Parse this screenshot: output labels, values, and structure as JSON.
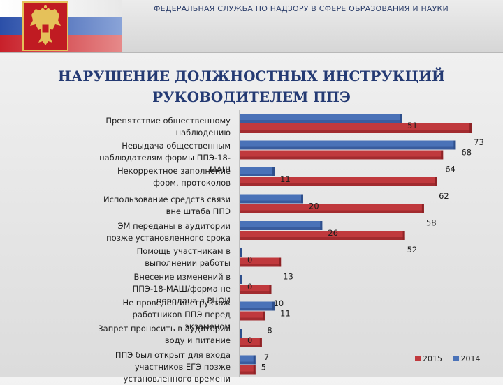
{
  "header": {
    "agency": "ФЕДЕРАЛЬНАЯ СЛУЖБА ПО НАДЗОРУ В СФЕРЕ ОБРАЗОВАНИЯ И НАУКИ",
    "emblem_icon": "russian-coat-of-arms-icon"
  },
  "title": {
    "line1": "НАРУШЕНИЕ ДОЛЖНОСТНЫХ ИНСТРУКЦИЙ",
    "line2": "РУКОВОДИТЕЛЕМ ППЭ"
  },
  "chart_data": {
    "type": "bar",
    "orientation": "horizontal",
    "categories": [
      "Препятствие общественному наблюдению",
      "Невыдача общественным наблюдателям формы ППЭ-18-МАШ",
      "Некорректное заполнение форм, протоколов",
      "Использование средств связи вне штаба ППЭ",
      "ЭМ переданы в аудитории позже установленного срока",
      "Помощь участникам в выполнении работы",
      "Внесение изменений в ППЭ-18-МАШ/форма не передана в РЦОИ",
      "Не проведен инструктаж работников ППЭ перед экзаменом",
      "Запрет проносить в аудитории воду и питание",
      "ППЭ был открыт для входа участников ЕГЭ позже установленного времени"
    ],
    "series": [
      {
        "name": "2014",
        "values": [
          51,
          68,
          11,
          20,
          26,
          0,
          0,
          11,
          0,
          5
        ]
      },
      {
        "name": "2015",
        "values": [
          73,
          64,
          62,
          58,
          52,
          13,
          10,
          8,
          7,
          5
        ]
      }
    ],
    "xlim": [
      0,
      73
    ],
    "legend": "bottom-right",
    "grid": false,
    "colors": {
      "2014": "#4a72b8",
      "2015": "#c0393d"
    }
  }
}
